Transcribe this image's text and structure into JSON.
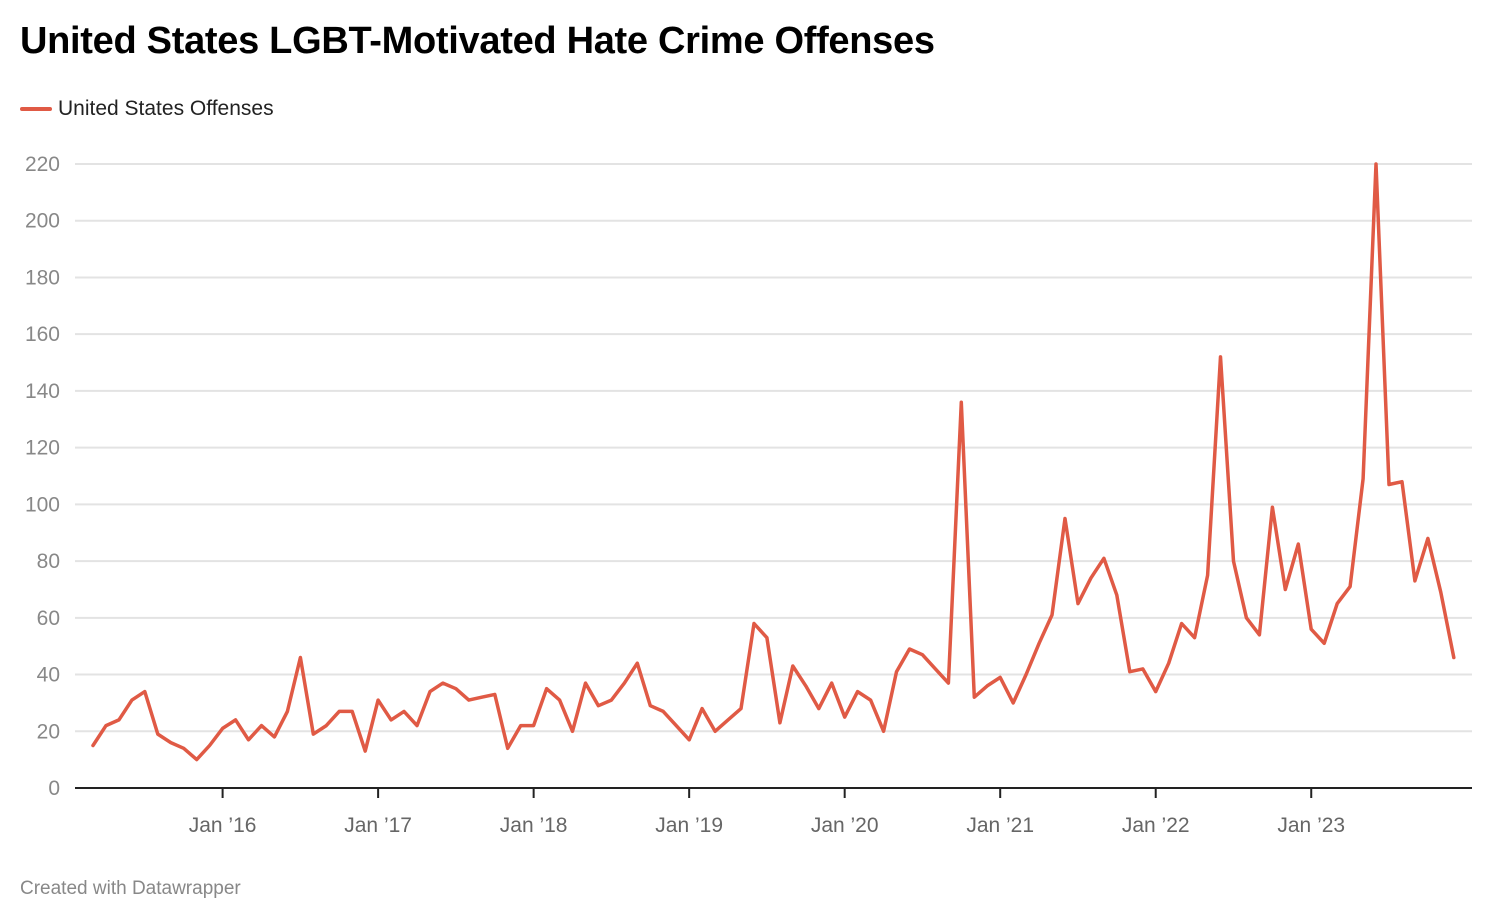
{
  "chart_data": {
    "type": "line",
    "title": "United States LGBT-Motivated Hate Crime Offenses",
    "start": "2015-03",
    "frequency": "monthly",
    "series": [
      {
        "name": "United States Offenses",
        "color": "#e05a45",
        "values": [
          15,
          22,
          24,
          31,
          34,
          19,
          16,
          14,
          10,
          15,
          21,
          24,
          17,
          22,
          18,
          27,
          46,
          19,
          22,
          27,
          27,
          13,
          31,
          24,
          27,
          22,
          34,
          37,
          35,
          31,
          32,
          33,
          14,
          22,
          22,
          35,
          31,
          20,
          37,
          29,
          31,
          37,
          44,
          29,
          27,
          22,
          17,
          28,
          20,
          24,
          28,
          58,
          53,
          23,
          43,
          36,
          28,
          37,
          25,
          34,
          31,
          20,
          41,
          49,
          47,
          42,
          37,
          136,
          32,
          36,
          39,
          30,
          40,
          51,
          61,
          95,
          65,
          74,
          81,
          68,
          41,
          42,
          34,
          44,
          58,
          53,
          75,
          152,
          80,
          60,
          54,
          99,
          70,
          86,
          56,
          51,
          65,
          71,
          109,
          220,
          107,
          108,
          73,
          88,
          69,
          46
        ]
      }
    ],
    "x_ticks": [
      "Jan ’16",
      "Jan ’17",
      "Jan ’18",
      "Jan ’19",
      "Jan ’20",
      "Jan ’21",
      "Jan ’22",
      "Jan ’23"
    ],
    "y_ticks": [
      0,
      20,
      40,
      60,
      80,
      100,
      120,
      140,
      160,
      180,
      200,
      220
    ],
    "ylim": [
      0,
      220
    ],
    "grid": true,
    "legend_placement": "top-left"
  },
  "footer": "Created with Datawrapper"
}
